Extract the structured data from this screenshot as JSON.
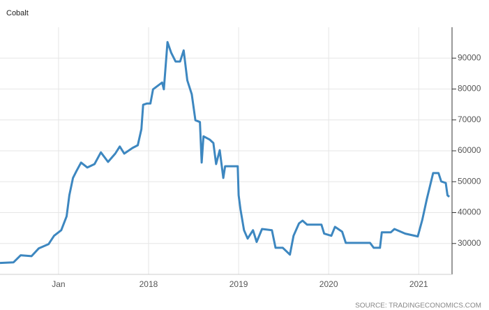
{
  "chart_data": {
    "type": "line",
    "title": "Cobalt",
    "source": "SOURCE: TRADINGECONOMICS.COM",
    "x": [
      2016.35,
      2016.5,
      2016.58,
      2016.7,
      2016.78,
      2016.89,
      2016.95,
      2017.03,
      2017.09,
      2017.12,
      2017.16,
      2017.2,
      2017.25,
      2017.32,
      2017.4,
      2017.47,
      2017.55,
      2017.63,
      2017.68,
      2017.73,
      2017.82,
      2017.88,
      2017.92,
      2017.94,
      2017.98,
      2018.02,
      2018.05,
      2018.15,
      2018.17,
      2018.21,
      2018.25,
      2018.3,
      2018.35,
      2018.39,
      2018.43,
      2018.48,
      2018.52,
      2018.57,
      2018.59,
      2018.61,
      2018.68,
      2018.72,
      2018.75,
      2018.79,
      2018.83,
      2018.85,
      2018.95,
      2018.99,
      2019.0,
      2019.02,
      2019.06,
      2019.1,
      2019.16,
      2019.2,
      2019.26,
      2019.37,
      2019.41,
      2019.49,
      2019.53,
      2019.57,
      2019.61,
      2019.67,
      2019.71,
      2019.76,
      2019.92,
      2019.95,
      2020.03,
      2020.07,
      2020.15,
      2020.19,
      2020.46,
      2020.5,
      2020.57,
      2020.59,
      2020.69,
      2020.73,
      2020.85,
      2020.99,
      2021.04,
      2021.09,
      2021.16,
      2021.22,
      2021.25,
      2021.3,
      2021.32,
      2021.34
    ],
    "series": [
      {
        "name": "Cobalt",
        "color": "#3d87c0",
        "values": [
          23700,
          23900,
          26200,
          25900,
          28400,
          29800,
          32500,
          34300,
          38800,
          45600,
          51200,
          53500,
          56200,
          54600,
          55700,
          59500,
          56400,
          59100,
          61400,
          59100,
          60900,
          61800,
          67000,
          74900,
          75300,
          75300,
          79900,
          82100,
          79900,
          95200,
          91800,
          88900,
          88900,
          92500,
          82800,
          78300,
          69900,
          69300,
          56200,
          64700,
          63600,
          62500,
          55700,
          60200,
          51200,
          55000,
          55000,
          55000,
          45600,
          41100,
          34300,
          31600,
          34300,
          30500,
          34700,
          34300,
          28600,
          28600,
          27500,
          26400,
          32500,
          36500,
          37400,
          36100,
          36100,
          33200,
          32500,
          35400,
          33800,
          30200,
          30200,
          28600,
          28600,
          33600,
          33600,
          34700,
          33200,
          32300,
          37700,
          44400,
          52800,
          52800,
          50100,
          49600,
          45600,
          45100
        ]
      }
    ],
    "xlim": [
      2016.35,
      2021.37
    ],
    "xticks": [
      {
        "value": 2017,
        "label": "Jan"
      },
      2018,
      2019,
      2020,
      2021
    ],
    "ylim": [
      20000,
      100000
    ],
    "yticks": [
      30000,
      40000,
      50000,
      60000,
      70000,
      80000,
      90000
    ],
    "grid": true
  }
}
